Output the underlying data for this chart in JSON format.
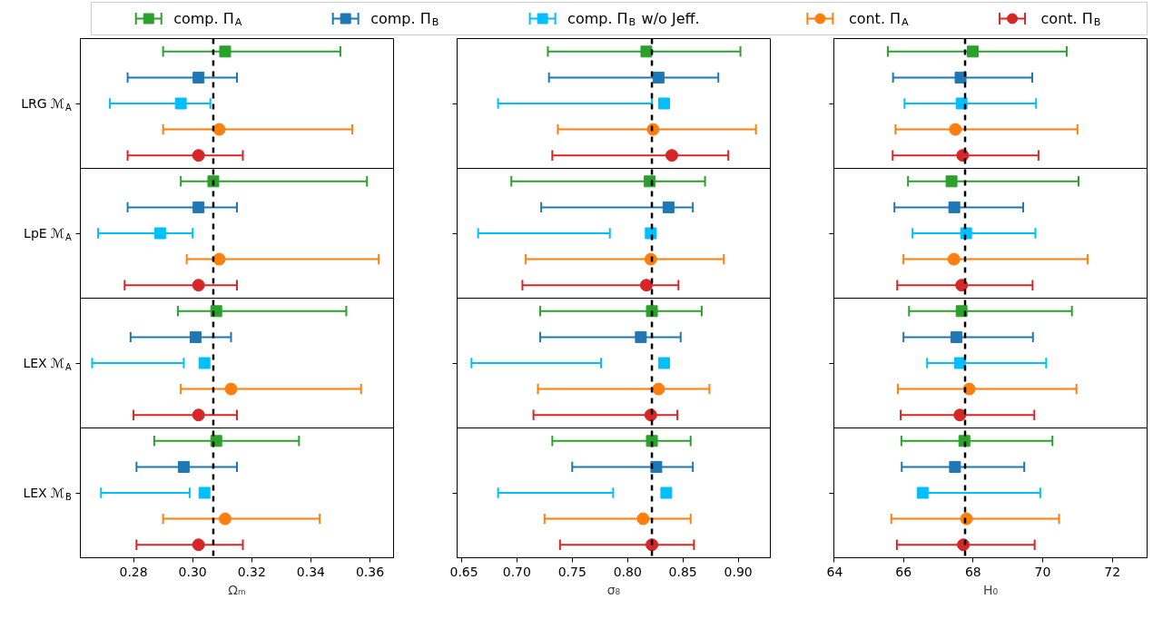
{
  "chart_data": [
    {
      "type": "scatter",
      "orientation": "horizontal",
      "legend": "top",
      "xlabel": "Ωₘ",
      "categories": [
        null,
        null,
        "LRG ℳ$_{A}$",
        null,
        null,
        null,
        null,
        "LpE ℳ$_{A}$",
        null,
        null,
        null,
        null,
        "LEX ℳ$_{A}$",
        null,
        null,
        null,
        null,
        "LEX ℳ$_{B}$",
        null,
        null
      ],
      "xlim": [
        0.262,
        0.368
      ],
      "xticks": [
        {
          "value": 0.28,
          "label": "0.28"
        },
        {
          "value": 0.3,
          "label": "0.30"
        },
        {
          "value": 0.32,
          "label": "0.32"
        },
        {
          "value": 0.34,
          "label": "0.34"
        },
        {
          "value": 0.36,
          "label": "0.36"
        }
      ],
      "ref_lines": [
        {
          "axis": "x",
          "value": 0.307,
          "color": "#000000",
          "line_style": "dashed"
        }
      ],
      "series": [
        {
          "name": "comp. Π$_{A}$",
          "color": "#2ca02c",
          "marker": "square",
          "values": [
            0.311,
            null,
            null,
            null,
            null,
            0.307,
            null,
            null,
            null,
            null,
            0.308,
            null,
            null,
            null,
            null,
            0.308,
            null,
            null,
            null,
            null
          ],
          "errors": [
            [
              0.29,
              0.35
            ],
            null,
            null,
            null,
            null,
            [
              0.296,
              0.359
            ],
            null,
            null,
            null,
            null,
            [
              0.295,
              0.352
            ],
            null,
            null,
            null,
            null,
            [
              0.287,
              0.336
            ],
            null,
            null,
            null,
            null
          ]
        },
        {
          "name": "comp. Π$_{B}$",
          "color": "#1f77b4",
          "marker": "square",
          "values": [
            null,
            0.302,
            null,
            null,
            null,
            null,
            0.302,
            null,
            null,
            null,
            null,
            0.301,
            null,
            null,
            null,
            null,
            0.297,
            null,
            null,
            null
          ],
          "errors": [
            null,
            [
              0.278,
              0.315
            ],
            null,
            null,
            null,
            null,
            [
              0.278,
              0.315
            ],
            null,
            null,
            null,
            null,
            [
              0.279,
              0.313
            ],
            null,
            null,
            null,
            null,
            [
              0.281,
              0.315
            ],
            null,
            null,
            null
          ]
        },
        {
          "name": "comp. Π$_{B}$ w/o Jeff.",
          "color": "#00bfff",
          "marker": "square",
          "values": [
            null,
            null,
            0.296,
            null,
            null,
            null,
            null,
            0.289,
            null,
            null,
            null,
            null,
            0.304,
            null,
            null,
            null,
            null,
            0.304,
            null,
            null
          ],
          "errors": [
            null,
            null,
            [
              0.272,
              0.306
            ],
            null,
            null,
            null,
            null,
            [
              0.268,
              0.3
            ],
            null,
            null,
            null,
            null,
            [
              0.266,
              0.297
            ],
            null,
            null,
            null,
            null,
            [
              0.269,
              0.299
            ],
            null,
            null
          ]
        },
        {
          "name": "cont. Π$_{A}$",
          "color": "#ff7f0e",
          "marker": "circle",
          "values": [
            null,
            null,
            null,
            0.309,
            null,
            null,
            null,
            null,
            0.309,
            null,
            null,
            null,
            null,
            0.313,
            null,
            null,
            null,
            null,
            0.311,
            null
          ],
          "errors": [
            null,
            null,
            null,
            [
              0.29,
              0.354
            ],
            null,
            null,
            null,
            null,
            [
              0.298,
              0.363
            ],
            null,
            null,
            null,
            null,
            [
              0.296,
              0.357
            ],
            null,
            null,
            null,
            null,
            [
              0.29,
              0.343
            ],
            null
          ]
        },
        {
          "name": "cont. Π$_{B}$",
          "color": "#d62728",
          "marker": "circle",
          "values": [
            null,
            null,
            null,
            null,
            0.302,
            null,
            null,
            null,
            null,
            0.302,
            null,
            null,
            null,
            null,
            0.302,
            null,
            null,
            null,
            null,
            0.302
          ],
          "errors": [
            null,
            null,
            null,
            null,
            [
              0.278,
              0.317
            ],
            null,
            null,
            null,
            null,
            [
              0.277,
              0.315
            ],
            null,
            null,
            null,
            null,
            [
              0.28,
              0.315
            ],
            null,
            null,
            null,
            null,
            [
              0.281,
              0.317
            ]
          ]
        }
      ]
    },
    {
      "type": "scatter",
      "orientation": "horizontal",
      "xlabel": "σ₈",
      "tick_labels": "x",
      "categories": [
        null,
        null,
        null,
        null,
        null,
        null,
        null,
        null,
        null,
        null,
        null,
        null,
        null,
        null,
        null,
        null,
        null,
        null,
        null,
        null
      ],
      "xlim": [
        0.646,
        0.929
      ],
      "xticks": [
        {
          "value": 0.65,
          "label": "0.65"
        },
        {
          "value": 0.7,
          "label": "0.70"
        },
        {
          "value": 0.75,
          "label": "0.75"
        },
        {
          "value": 0.8,
          "label": "0.80"
        },
        {
          "value": 0.85,
          "label": "0.85"
        },
        {
          "value": 0.9,
          "label": "0.90"
        }
      ],
      "ref_lines": [
        {
          "axis": "x",
          "value": 0.822,
          "color": "#000000",
          "line_style": "dashed"
        }
      ],
      "series": [
        {
          "color": "#2ca02c",
          "marker": "square",
          "values": [
            0.817,
            null,
            null,
            null,
            null,
            0.82,
            null,
            null,
            null,
            null,
            0.822,
            null,
            null,
            null,
            null,
            0.822,
            null,
            null,
            null,
            null
          ],
          "errors": [
            [
              0.728,
              0.902
            ],
            null,
            null,
            null,
            null,
            [
              0.695,
              0.87
            ],
            null,
            null,
            null,
            null,
            [
              0.721,
              0.867
            ],
            null,
            null,
            null,
            null,
            [
              0.732,
              0.857
            ],
            null,
            null,
            null,
            null
          ]
        },
        {
          "color": "#1f77b4",
          "marker": "square",
          "values": [
            null,
            0.828,
            null,
            null,
            null,
            null,
            0.837,
            null,
            null,
            null,
            null,
            0.812,
            null,
            null,
            null,
            null,
            0.826,
            null,
            null,
            null
          ],
          "errors": [
            null,
            [
              0.729,
              0.882
            ],
            null,
            null,
            null,
            null,
            [
              0.722,
              0.859
            ],
            null,
            null,
            null,
            null,
            [
              0.721,
              0.848
            ],
            null,
            null,
            null,
            null,
            [
              0.75,
              0.859
            ],
            null,
            null,
            null
          ]
        },
        {
          "color": "#00bfff",
          "marker": "square",
          "values": [
            null,
            null,
            0.833,
            null,
            null,
            null,
            null,
            0.821,
            null,
            null,
            null,
            null,
            0.833,
            null,
            null,
            null,
            null,
            0.835,
            null,
            null
          ],
          "errors": [
            null,
            null,
            [
              0.683,
              0.822
            ],
            null,
            null,
            null,
            null,
            [
              0.665,
              0.784
            ],
            null,
            null,
            null,
            null,
            [
              0.659,
              0.776
            ],
            null,
            null,
            null,
            null,
            [
              0.683,
              0.787
            ],
            null,
            null
          ]
        },
        {
          "color": "#ff7f0e",
          "marker": "circle",
          "values": [
            null,
            null,
            null,
            0.823,
            null,
            null,
            null,
            null,
            0.821,
            null,
            null,
            null,
            null,
            0.828,
            null,
            null,
            null,
            null,
            0.814,
            null
          ],
          "errors": [
            null,
            null,
            null,
            [
              0.737,
              0.916
            ],
            null,
            null,
            null,
            null,
            [
              0.708,
              0.887
            ],
            null,
            null,
            null,
            null,
            [
              0.719,
              0.874
            ],
            null,
            null,
            null,
            null,
            [
              0.725,
              0.857
            ],
            null
          ]
        },
        {
          "color": "#d62728",
          "marker": "circle",
          "values": [
            null,
            null,
            null,
            null,
            0.84,
            null,
            null,
            null,
            null,
            0.817,
            null,
            null,
            null,
            null,
            0.821,
            null,
            null,
            null,
            null,
            0.822
          ],
          "errors": [
            null,
            null,
            null,
            null,
            [
              0.732,
              0.891
            ],
            null,
            null,
            null,
            null,
            [
              0.705,
              0.846
            ],
            null,
            null,
            null,
            null,
            [
              0.715,
              0.845
            ],
            null,
            null,
            null,
            null,
            [
              0.739,
              0.86
            ]
          ]
        }
      ]
    },
    {
      "type": "scatter",
      "orientation": "horizontal",
      "xlabel": "H₀",
      "tick_labels": "x",
      "categories": [
        null,
        null,
        null,
        null,
        null,
        null,
        null,
        null,
        null,
        null,
        null,
        null,
        null,
        null,
        null,
        null,
        null,
        null,
        null,
        null
      ],
      "xlim": [
        64,
        73
      ],
      "xticks": [
        64,
        66,
        68,
        70,
        72
      ],
      "ref_lines": [
        {
          "axis": "x",
          "value": 67.77,
          "color": "#000000",
          "line_style": "dashed"
        }
      ],
      "series": [
        {
          "color": "#2ca02c",
          "marker": "square",
          "values": [
            67.99,
            null,
            null,
            null,
            null,
            67.38,
            null,
            null,
            null,
            null,
            67.67,
            null,
            null,
            null,
            null,
            67.75,
            null,
            null,
            null,
            null
          ],
          "errors": [
            [
              65.55,
              70.69
            ],
            null,
            null,
            null,
            null,
            [
              66.13,
              71.03
            ],
            null,
            null,
            null,
            null,
            [
              66.16,
              70.84
            ],
            null,
            null,
            null,
            null,
            [
              65.94,
              70.28
            ],
            null,
            null,
            null,
            null
          ]
        },
        {
          "color": "#1f77b4",
          "marker": "square",
          "values": [
            null,
            67.64,
            null,
            null,
            null,
            null,
            67.46,
            null,
            null,
            null,
            null,
            67.52,
            null,
            null,
            null,
            null,
            67.48,
            null,
            null,
            null
          ],
          "errors": [
            null,
            [
              65.7,
              69.7
            ],
            null,
            null,
            null,
            null,
            [
              65.74,
              69.44
            ],
            null,
            null,
            null,
            null,
            [
              66.0,
              69.72
            ],
            null,
            null,
            null,
            null,
            [
              65.95,
              69.47
            ],
            null,
            null,
            null
          ]
        },
        {
          "color": "#00bfff",
          "marker": "square",
          "values": [
            null,
            null,
            67.67,
            null,
            null,
            null,
            null,
            67.8,
            null,
            null,
            null,
            null,
            67.62,
            null,
            null,
            null,
            null,
            66.55,
            null,
            null
          ],
          "errors": [
            null,
            null,
            [
              66.03,
              69.81
            ],
            null,
            null,
            null,
            null,
            [
              66.26,
              69.79
            ],
            null,
            null,
            null,
            null,
            [
              66.68,
              70.1
            ],
            null,
            null,
            null,
            null,
            [
              66.45,
              69.93
            ],
            null,
            null
          ]
        },
        {
          "color": "#ff7f0e",
          "marker": "circle",
          "values": [
            null,
            null,
            null,
            67.49,
            null,
            null,
            null,
            null,
            67.45,
            null,
            null,
            null,
            null,
            67.89,
            null,
            null,
            null,
            null,
            67.81,
            null
          ],
          "errors": [
            null,
            null,
            null,
            [
              65.77,
              71.0
            ],
            null,
            null,
            null,
            null,
            [
              66.0,
              71.29
            ],
            null,
            null,
            null,
            null,
            [
              65.84,
              70.97
            ],
            null,
            null,
            null,
            null,
            [
              65.65,
              70.47
            ],
            null
          ]
        },
        {
          "color": "#d62728",
          "marker": "circle",
          "values": [
            null,
            null,
            null,
            null,
            67.7,
            null,
            null,
            null,
            null,
            67.67,
            null,
            null,
            null,
            null,
            67.62,
            null,
            null,
            null,
            null,
            67.72
          ],
          "errors": [
            null,
            null,
            null,
            null,
            [
              65.69,
              69.88
            ],
            null,
            null,
            null,
            null,
            [
              65.82,
              69.71
            ],
            null,
            null,
            null,
            null,
            [
              65.92,
              69.76
            ],
            null,
            null,
            null,
            null,
            [
              65.81,
              69.77
            ]
          ]
        }
      ]
    }
  ]
}
